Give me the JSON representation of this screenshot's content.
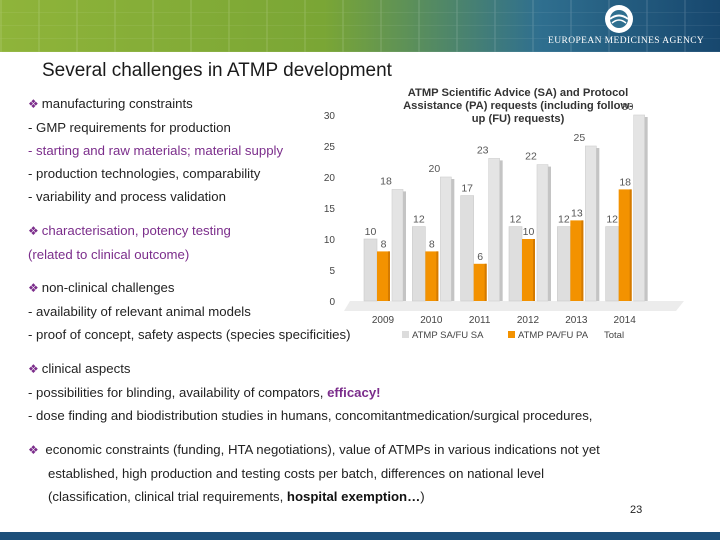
{
  "header": {
    "agency_name": "EUROPEAN MEDICINES AGENCY"
  },
  "slide": {
    "title": "Several challenges in ATMP development",
    "page_number": "23"
  },
  "bullets": [
    {
      "heading": "manufacturing constraints",
      "lines": [
        "- GMP requirements for production",
        "- starting and raw materials; material supply",
        "- production technologies, comparability",
        "- variability and process validation"
      ]
    },
    {
      "heading": "characterisation, potency testing",
      "lines": [
        " (related to clinical outcome)"
      ]
    },
    {
      "heading": "non-clinical challenges",
      "lines": [
        "- availability of relevant animal models",
        "- proof of concept, safety aspects (species specificities)"
      ]
    },
    {
      "heading": "clinical aspects",
      "line1_prefix": "- possibilities for blinding, availability of compators, ",
      "line1_highlight": "efficacy!",
      "line2": "- dose finding and biodistribution studies in humans, concomitantmedication/surgical procedures,"
    },
    {
      "heading": " economic constraints (funding, HTA negotiations), value of ATMPs in various indications not yet",
      "line2": "established, high production and testing costs per batch, differences on national level",
      "line3_prefix": "(classification, clinical trial requirements, ",
      "line3_bold": "hospital exemption…",
      "line3_suffix": ")"
    }
  ],
  "colors": {
    "accent_purple": "#7b2d8b",
    "series_sa": "#dcdcdc",
    "series_pa": "#f39200",
    "series_total": "#e8e8e8"
  },
  "chart_data": {
    "type": "bar",
    "title_lines": [
      "ATMP Scientific Advice (SA)  and Protocol",
      "Assistance (PA)  requests (including follow-",
      "up (FU) requests)"
    ],
    "categories": [
      "2009",
      "2010",
      "2011",
      "2012",
      "2013",
      "2014"
    ],
    "series": [
      {
        "name": "ATMP SA/FU SA",
        "values": [
          10,
          12,
          17,
          12,
          12,
          12
        ]
      },
      {
        "name": "ATMP PA/FU PA",
        "values": [
          8,
          8,
          6,
          10,
          13,
          18
        ]
      },
      {
        "name": "Total",
        "values": [
          18,
          20,
          23,
          22,
          25,
          30
        ]
      }
    ],
    "yticks": [
      "0",
      "5",
      "10",
      "15",
      "20",
      "25",
      "30"
    ],
    "ylim": [
      0,
      30
    ]
  }
}
